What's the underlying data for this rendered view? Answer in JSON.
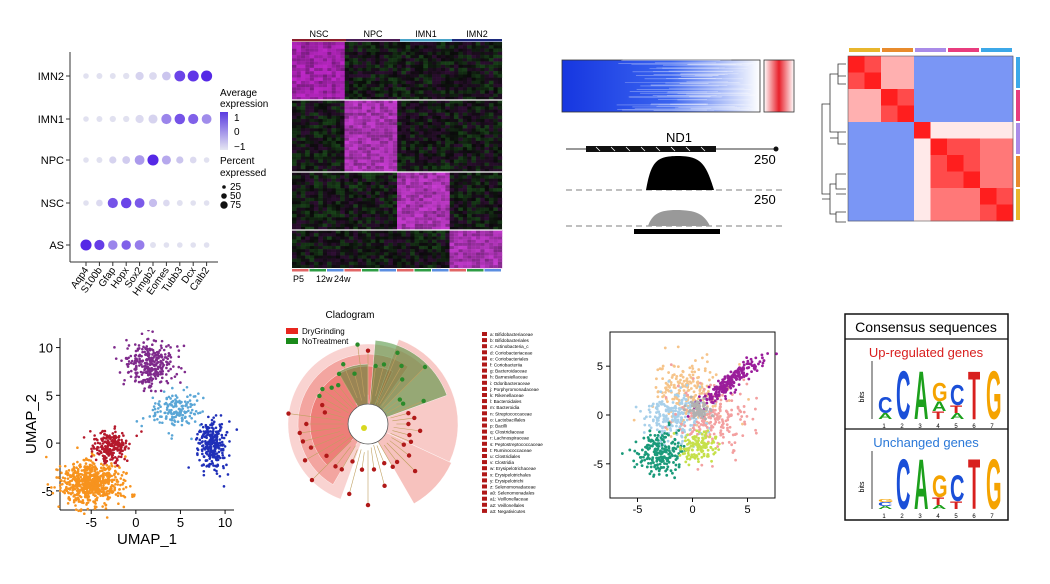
{
  "dotplot": {
    "type": "dot",
    "rows": [
      "IMN2",
      "IMN1",
      "NPC",
      "NSC",
      "AS"
    ],
    "genes": [
      "Aqp4",
      "S100b",
      "Gfap",
      "Hopx",
      "Sox2",
      "Hmgb2",
      "Eomes",
      "Tubb3",
      "Dcx",
      "Calb2"
    ],
    "expr": [
      [
        -1,
        -1,
        -1,
        -1,
        -0.8,
        -0.9,
        -0.6,
        1.2,
        1.4,
        1.6
      ],
      [
        -1,
        -1,
        -1,
        -1,
        -0.9,
        -0.8,
        0.3,
        1.0,
        0.8,
        0.2
      ],
      [
        -1,
        -1,
        -0.8,
        -0.7,
        0.0,
        1.6,
        -0.2,
        -0.6,
        -0.9,
        -1
      ],
      [
        -1,
        -0.9,
        1.0,
        1.2,
        0.9,
        -0.5,
        -0.9,
        -1,
        -1,
        -1
      ],
      [
        1.6,
        1.3,
        0.3,
        0.8,
        0.4,
        -1,
        -1,
        -1,
        -1,
        -1
      ]
    ],
    "pct": [
      [
        8,
        10,
        10,
        12,
        30,
        25,
        35,
        65,
        70,
        70
      ],
      [
        8,
        10,
        12,
        12,
        30,
        40,
        55,
        60,
        55,
        50
      ],
      [
        8,
        10,
        20,
        25,
        50,
        70,
        40,
        20,
        15,
        8
      ],
      [
        8,
        15,
        55,
        60,
        50,
        30,
        15,
        10,
        8,
        8
      ],
      [
        70,
        55,
        45,
        45,
        50,
        10,
        8,
        8,
        8,
        8
      ]
    ],
    "legend_expr_title": "Average\nexpression",
    "legend_expr_ticks": [
      "1",
      "0",
      "−1"
    ],
    "legend_pct_title": "Percent\nexpressed",
    "legend_pct_ticks": [
      "25",
      "50",
      "75"
    ]
  },
  "heatmap1": {
    "groups": [
      "NSC",
      "NPC",
      "IMN1",
      "IMN2"
    ],
    "group_colors": [
      "#8b1e2e",
      "#4b1d56",
      "#4aa3c8",
      "#1c2a7c"
    ],
    "bottom_labels": [
      "P5",
      "12w",
      "24w"
    ]
  },
  "track": {
    "gene": "ND1",
    "scale1": "250",
    "scale2": "250"
  },
  "corr": {
    "top_colors": [
      "#e8b62c",
      "#e88b2c",
      "#a98be8",
      "#e83c7e",
      "#3ca8e8"
    ],
    "side_colors": [
      "#3ca8e8",
      "#e83c7e",
      "#a98be8",
      "#e88b2c",
      "#e8b62c"
    ]
  },
  "umap": {
    "xlabel": "UMAP_1",
    "ylabel": "UMAP_2",
    "xticks": [
      -5,
      0,
      5,
      10
    ],
    "yticks": [
      -5,
      0,
      5,
      10
    ],
    "xlim": [
      -8.5,
      11
    ],
    "ylim": [
      -7,
      11
    ]
  },
  "clado": {
    "title": "Cladogram",
    "legend": [
      {
        "label": "DryGrinding",
        "color": "#e8261e"
      },
      {
        "label": "NoTreatment",
        "color": "#1a8a1a"
      }
    ],
    "taxa": [
      "a: Bifidobacteriaceae",
      "b: Bifidobacteriales",
      "c: Actinobacteria_c",
      "d: Coriobacteriaceae",
      "e: Coriobacteriales",
      "f: Coriobacteriia",
      "g: Bacteroidaceae",
      "h: Barnesiellaceae",
      "i: Odoribacteraceae",
      "j: Porphyromonadaceae",
      "k: Rikenellaceae",
      "l: Bacteroidales",
      "m: Bacteroidia",
      "n: Streptococcaceae",
      "o: Lactobacillales",
      "p: Bacilli",
      "q: Clostridiaceae",
      "r: Lachnospiraceae",
      "s: Peptostreptococcaceae",
      "t: Ruminococcaceae",
      "u: Clostridiales",
      "v: Clostridia",
      "w: Erysipelotrichaceae",
      "x: Erysipelotrichales",
      "y: Erysipelotrichi",
      "z: Selenomonadaceae",
      "a0: Selenomonadales",
      "a1: Veillonellaceae",
      "a2: Veillonellales",
      "a3: Negativicutes"
    ]
  },
  "scatter": {
    "xticks": [
      -5,
      0,
      5
    ],
    "yticks": [
      -5,
      0,
      5
    ],
    "xlim": [
      -7.5,
      7.5
    ],
    "ylim": [
      -8.5,
      8.5
    ]
  },
  "motif": {
    "title": "Consensus sequences",
    "up_label": "Up-regulated genes",
    "unch_label": "Unchanged genes",
    "axis": "bits",
    "positions": [
      "1",
      "2",
      "3",
      "4",
      "5",
      "6",
      "7"
    ]
  }
}
